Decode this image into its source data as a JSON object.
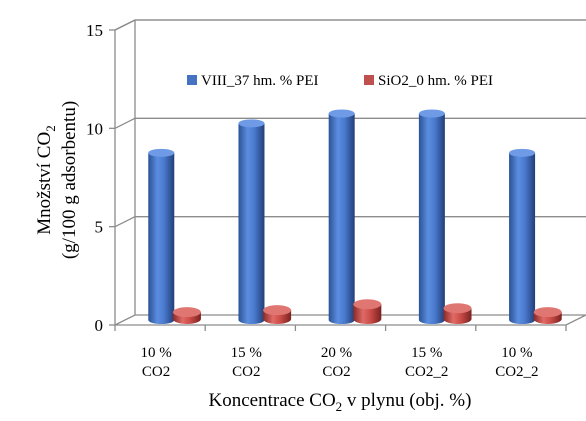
{
  "chart_data": {
    "type": "bar",
    "categories": [
      [
        "10 %",
        "CO2"
      ],
      [
        "15 %",
        "CO2"
      ],
      [
        "20 %",
        "CO2"
      ],
      [
        "15 %",
        "CO2_2"
      ],
      [
        "10 %",
        "CO2_2"
      ]
    ],
    "series": [
      {
        "name": "VIII_37 hm. % PEI",
        "color": "#4472c4",
        "values": [
          8.5,
          10.0,
          10.5,
          10.5,
          8.5
        ]
      },
      {
        "name": "SiO2_0 hm. % PEI",
        "color": "#c0504d",
        "values": [
          0.4,
          0.5,
          0.8,
          0.6,
          0.4
        ]
      }
    ],
    "yticks": [
      0,
      5,
      10,
      15
    ],
    "ylim": [
      0,
      15
    ],
    "grid": true,
    "legend": "top",
    "xlabel": {
      "text": "Koncentrace CO",
      "sub": "2",
      "rest": " v plynu (obj. %)"
    },
    "ylabel": {
      "line1": {
        "text": "Množství CO",
        "sub": "2"
      },
      "line2": "(g/100 g adsorbentu)"
    }
  }
}
